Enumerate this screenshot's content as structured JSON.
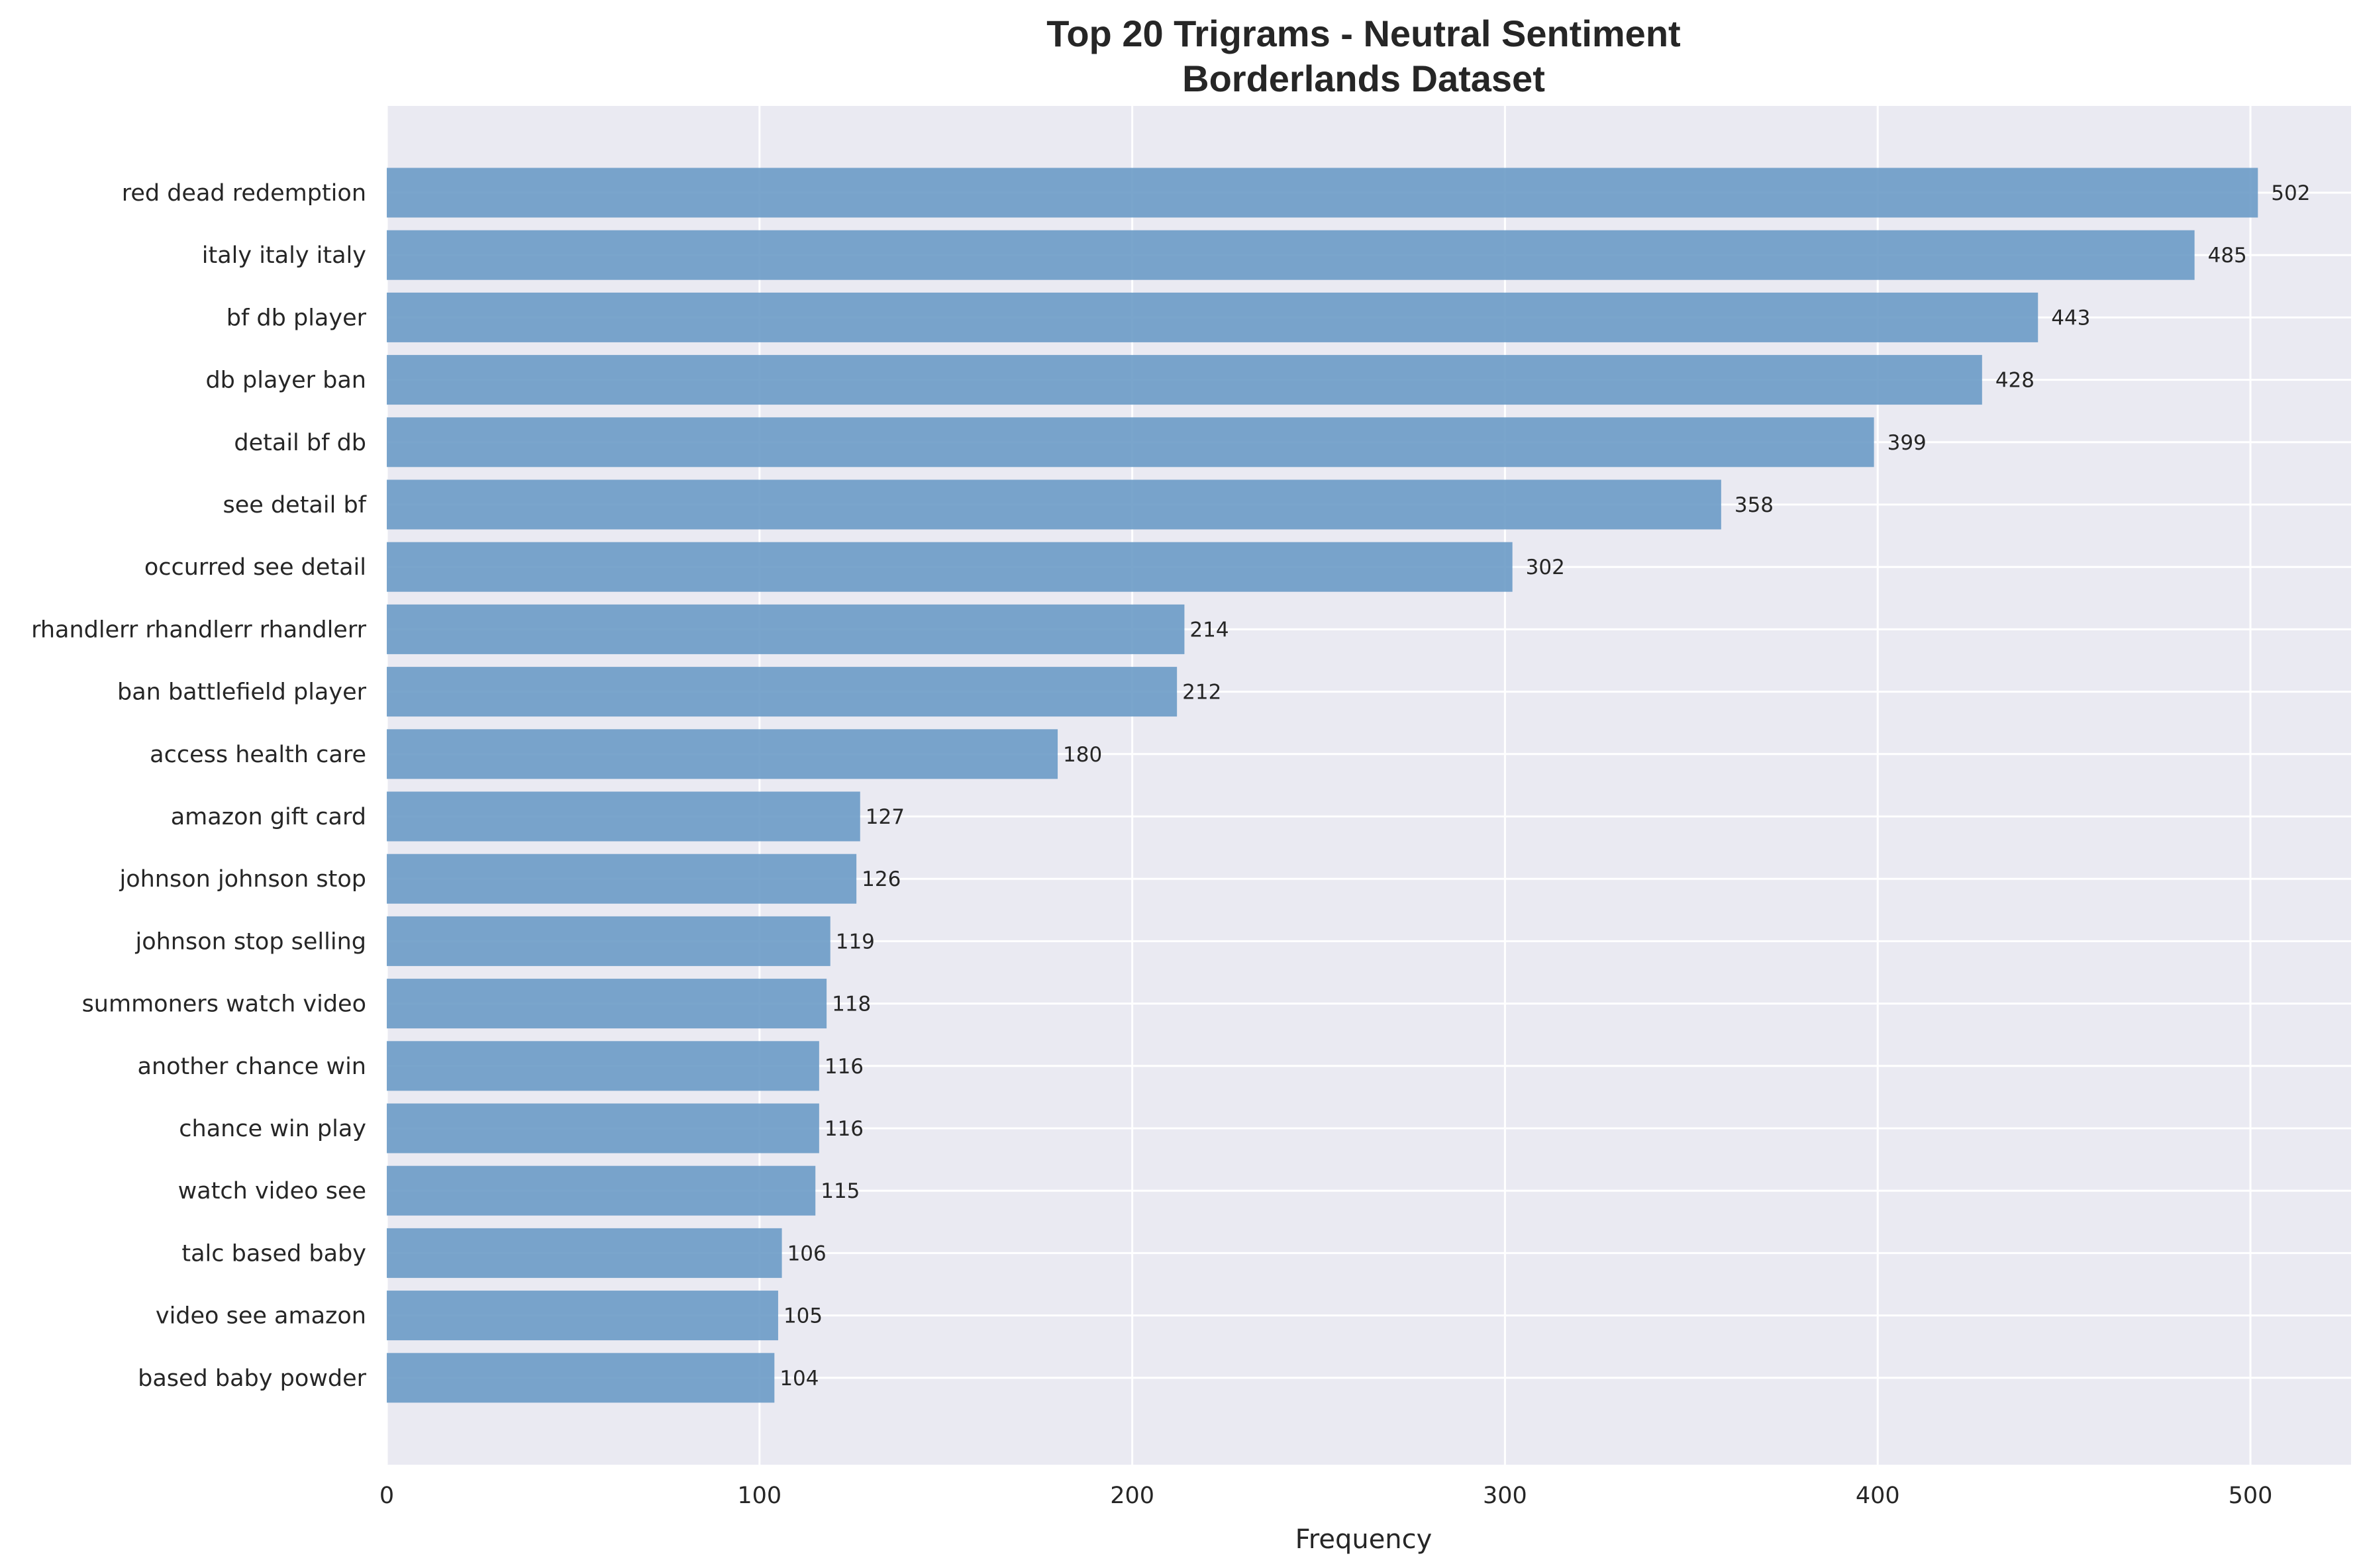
{
  "chart_data": {
    "type": "bar",
    "orientation": "horizontal",
    "title": "Top 20 Trigrams - Neutral Sentiment",
    "subtitle": "Borderlands Dataset",
    "xlabel": "Frequency",
    "ylabel": "",
    "xlim": [
      0,
      527
    ],
    "xticks": [
      0,
      100,
      200,
      300,
      400,
      500
    ],
    "grid": true,
    "bar_color": "#6c9bc7",
    "background_color": "#eaeaf2",
    "categories": [
      "red dead redemption",
      "italy italy italy",
      "bf db player",
      "db player ban",
      "detail bf db",
      "see detail bf",
      "occurred see detail",
      "rhandlerr rhandlerr rhandlerr",
      "ban battlefield player",
      "access health care",
      "amazon gift card",
      "johnson johnson stop",
      "johnson stop selling",
      "summoners watch video",
      "another chance win",
      "chance win play",
      "watch video see",
      "talc based baby",
      "video see amazon",
      "based baby powder"
    ],
    "values": [
      502,
      485,
      443,
      428,
      399,
      358,
      302,
      214,
      212,
      180,
      127,
      126,
      119,
      118,
      116,
      116,
      115,
      106,
      105,
      104
    ]
  }
}
